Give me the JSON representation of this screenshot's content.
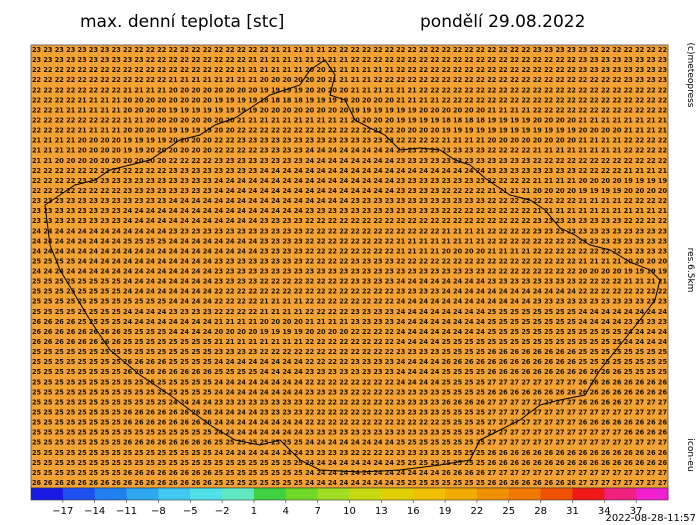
{
  "header": {
    "title": "max. denní teplota [stc]",
    "date": "pondělí 29.08.2022"
  },
  "side": {
    "copyright": "(c)meteopress",
    "resolution": "res.6.5km",
    "model": "icon-eu"
  },
  "footer": {
    "timestamp": "2022-08-28-11:57"
  },
  "map": {
    "background": "#f4a233",
    "rows": [
      "23 23 23 23 23 23 23 23 22 22 22 22 22 22 22 22 22 22 22 22 22 21 21 21 21 21 22 22 22 22 22 22 22 22 22 22 22 22 22 22 22 22 22 22 23 23 23 23 23 22 22 22 22 22 22 22",
      "23 23 23 23 23 23 23 23 23 23 22 22 22 22 22 22 22 22 22 21 21 21 21 21 21 21 21 21 22 22 22 22 22 22 22 22 22 22 22 22 22 22 22 22 22 22 22 22 23 23 23 23 23 23 23 23",
      "22 22 22 22 22 22 22 22 22 22 22 22 22 22 22 22 22 22 21 21 21 21 21 21 20 20 21 21 21 21 21 21 22 22 22 22 22 22 22 22 22 22 22 22 22 22 22 22 23 23 23 23 23 23 23 23",
      "22 22 22 22 22 22 22 22 22 22 22 22 21 21 21 21 21 21 21 21 20 20 20 20 20 20 21 21 21 21 22 22 22 22 22 22 22 22 22 22 22 22 22 22 22 22 22 22 22 22 22 22 23 23 23 23",
      "22 22 22 22 22 22 22 22 21 21 21 21 20 20 20 20 20 20 20 20 19 19 19 19 20 20 20 20 21 21 21 21 21 21 22 22 22 22 22 22 22 22 22 22 22 22 22 22 22 22 22 22 22 22 22 22",
      "22 22 22 22 21 21 21 21 20 20 20 20 20 20 20 20 19 19 19 19 18 18 18 18 19 19 19 19 20 20 20 20 21 21 21 21 22 22 22 22 22 22 22 22 22 22 22 22 22 22 22 22 22 22 22 22",
      "22 22 21 21 21 21 21 21 20 20 20 20 19 19 19 19 19 19 19 19 20 20 20 20 20 20 20 20 19 19 19 19 19 19 20 20 20 20 20 20 21 21 21 21 22 22 22 22 22 22 22 22 22 22 22 22",
      "22 22 22 22 22 22 22 22 21 21 20 20 20 20 20 20 20 20 21 21 21 21 21 21 21 21 21 21 20 20 20 20 19 19 19 19 18 18 18 18 19 19 19 19 20 20 20 20 21 21 21 21 21 21 21 21",
      "22 22 22 22 21 21 21 21 20 20 20 20 19 19 19 19 20 20 22 22 22 22 22 22 22 22 22 22 22 22 22 22 20 20 20 20 19 19 19 19 19 19 19 19 19 19 19 19 20 20 20 20 21 21 21 21",
      "21 21 21 21 20 20 20 20 19 19 19 19 20 20 20 20 22 22 23 23 23 23 23 23 23 23 23 23 23 23 23 23 22 22 22 22 21 21 21 21 20 20 20 20 20 20 20 20 21 21 21 21 22 22 22 22",
      "21 21 21 21 20 20 20 20 19 19 20 20 20 20 20 20 22 22 22 22 23 23 23 23 24 24 24 24 24 24 24 24 23 23 23 23 23 23 23 23 22 22 22 22 21 21 21 21 21 21 21 21 22 22 22 22",
      "21 21 20 20 20 20 20 20 20 20 20 20 22 22 22 22 23 23 23 23 23 23 23 23 24 24 24 24 24 24 24 24 23 23 23 23 23 23 23 23 23 23 23 23 22 22 22 22 22 22 22 22 22 22 22 22",
      "22 22 22 22 22 22 22 22 22 22 22 22 23 23 23 23 23 23 23 23 24 24 24 24 24 24 24 24 24 24 24 24 24 24 24 24 24 24 24 24 23 23 23 23 23 23 23 23 22 22 22 22 21 21 21 21",
      "22 22 22 22 23 23 23 23 23 23 23 23 23 23 23 23 24 24 24 24 24 24 24 24 24 24 24 24 24 24 24 24 23 23 23 23 23 23 23 23 22 22 22 22 21 21 21 21 20 20 20 20 19 19 19 19",
      "22 22 22 22 22 22 22 22 23 23 23 23 23 23 23 23 24 24 24 24 24 24 24 24 24 24 24 24 24 24 24 24 23 23 23 23 22 22 22 22 21 21 21 21 20 20 20 20 19 19 19 19 20 20 20 20",
      "23 23 23 23 23 23 23 23 23 23 23 23 24 24 24 24 24 24 24 24 24 24 24 24 24 24 24 24 23 23 23 23 23 23 23 23 23 23 23 23 22 22 22 22 22 22 22 22 21 21 21 21 22 22 22 22",
      "23 23 23 23 23 23 23 23 24 24 24 24 24 24 24 24 24 24 24 24 24 24 24 24 23 23 23 23 23 23 23 23 23 23 23 23 22 22 22 22 22 22 22 22 21 21 21 21 21 21 21 21 21 21 21 21",
      "23 23 23 23 23 23 23 23 24 24 24 24 24 24 24 24 24 24 24 24 23 23 23 23 22 22 22 22 22 22 22 22 22 22 22 22 22 22 22 22 22 22 22 22 23 23 23 23 23 23 23 23 22 22 22 22",
      "24 24 24 24 24 24 24 24 24 24 24 24 23 23 23 23 23 23 23 23 23 23 23 23 22 22 22 22 22 22 22 22 22 22 22 22 21 21 21 21 22 22 22 22 23 23 23 23 23 23 23 23 23 23 23 23",
      "24 24 24 24 24 24 24 24 25 25 25 25 24 24 24 24 24 24 24 24 23 23 23 23 22 22 22 22 22 22 22 22 21 21 21 21 21 21 21 21 22 22 22 22 22 22 22 22 23 23 23 23 23 23 23 23",
      "24 24 24 24 24 24 24 24 24 24 24 24 24 24 24 24 24 24 24 24 23 23 23 23 22 22 22 22 22 22 22 22 21 21 21 21 20 20 20 20 21 21 21 21 22 22 22 22 22 22 22 22 23 23 23 23",
      "25 25 25 25 24 24 24 24 24 24 24 24 24 24 24 24 23 23 23 23 23 23 23 23 22 22 22 22 23 23 23 23 22 22 22 22 22 22 22 22 22 22 22 22 22 22 22 22 21 21 21 21 20 20 20 20",
      "24 24 24 24 24 24 24 24 24 24 24 24 24 24 24 24 23 23 23 23 23 23 23 23 23 23 23 23 23 23 23 23 23 23 23 23 23 23 23 23 22 22 22 22 22 22 22 22 20 20 20 20 19 19 19 19",
      "25 25 25 25 25 25 25 25 24 24 24 24 24 24 24 24 23 23 23 23 22 22 22 22 22 22 22 22 23 23 23 23 24 24 24 24 24 24 24 24 23 23 23 23 23 23 23 23 22 22 22 22 21 21 21 21",
      "25 25 25 25 25 25 25 25 24 24 24 24 24 24 24 24 22 22 22 22 22 22 22 22 22 22 22 22 22 22 22 22 23 23 23 23 24 24 24 24 24 24 24 24 24 24 24 24 22 22 22 22 22 22 22 22",
      "25 25 25 25 25 25 25 25 25 25 25 25 24 24 24 24 22 22 22 22 21 21 21 21 22 22 22 22 22 22 22 22 24 24 24 24 24 24 24 24 24 24 24 24 23 23 23 23 23 23 23 23 23 23 23 23",
      "25 25 25 25 25 25 25 25 24 24 24 24 23 23 23 23 22 22 22 22 21 21 21 21 22 22 22 22 23 23 23 23 24 24 24 24 24 24 24 24 25 25 25 25 25 25 25 25 24 24 24 24 24 24 24 24",
      "26 26 26 26 25 25 25 25 24 24 24 24 24 24 24 24 21 21 21 21 20 20 20 20 21 21 21 21 23 23 23 23 24 24 24 24 24 24 24 24 25 25 25 25 25 25 25 25 24 24 24 24 23 23 23 23",
      "26 26 26 26 26 26 26 26 25 25 25 25 24 24 24 24 20 20 20 20 19 19 19 19 20 20 20 20 22 22 22 22 24 24 24 24 24 24 24 24 25 25 25 25 25 25 25 25 25 25 25 25 24 24 24 24",
      "26 26 26 26 26 26 26 26 25 25 25 25 25 25 25 25 21 21 21 21 21 21 21 21 22 22 22 22 22 22 22 22 24 24 24 24 25 25 25 25 25 25 25 25 25 25 25 25 25 25 25 25 24 24 24 24",
      "25 25 25 25 25 25 25 25 25 25 25 25 25 25 25 25 23 23 23 23 22 22 22 22 22 22 22 22 22 22 22 22 23 23 23 23 25 25 25 25 26 26 26 26 26 26 26 26 25 25 25 25 25 25 25 25",
      "25 25 25 25 25 25 25 25 26 26 26 26 25 25 25 25 24 24 24 24 24 24 24 24 22 22 22 22 23 23 23 23 24 24 24 24 26 26 26 26 26 26 26 26 26 26 26 26 25 25 25 25 25 25 25 25",
      "25 25 25 25 25 25 25 25 26 26 26 26 26 26 26 26 25 25 25 25 24 24 24 24 23 23 23 23 23 23 23 23 24 24 24 24 25 25 25 25 26 26 26 26 26 26 26 26 26 26 26 26 25 25 25 25",
      "25 25 25 25 25 25 25 25 25 25 25 25 25 25 25 25 24 24 24 24 24 24 24 24 22 22 22 22 22 22 22 22 24 24 24 24 25 25 25 25 27 27 27 27 27 27 27 27 26 26 26 26 26 26 26 26",
      "25 25 25 25 25 25 25 25 25 25 25 25 25 25 25 25 24 24 24 24 24 24 24 24 23 23 23 23 22 22 22 22 23 23 23 23 25 25 25 25 26 26 26 26 26 26 26 26 26 26 26 26 26 26 26 26",
      "25 25 25 25 25 25 25 25 25 25 25 25 24 24 24 24 23 23 23 23 23 23 23 23 22 22 22 22 22 22 22 22 23 23 23 23 26 26 26 26 27 27 27 27 27 27 27 27 26 26 26 26 27 27 27 27",
      "25 25 25 25 25 25 25 25 26 26 26 26 26 26 26 26 24 24 24 24 23 23 23 23 22 22 22 22 22 22 22 22 23 23 23 23 25 25 25 25 27 27 27 27 27 27 27 27 27 27 27 27 27 27 27 27",
      "25 25 25 25 25 25 25 25 26 26 26 26 26 26 26 26 24 24 24 24 24 24 24 24 22 22 22 22 22 22 22 22 22 22 22 22 25 25 25 25 27 27 27 27 27 27 27 27 26 26 26 26 26 26 26 26",
      "25 25 25 25 25 25 25 25 25 25 25 25 25 25 25 25 24 24 24 24 24 24 24 24 23 23 23 23 23 23 23 23 23 23 23 23 25 25 25 25 27 27 27 27 27 27 27 27 27 27 27 27 26 26 26 26",
      "25 25 25 25 25 25 25 25 26 26 26 26 26 26 26 26 25 25 25 25 25 25 25 25 24 24 24 24 24 24 24 24 25 25 25 25 25 25 25 25 27 27 27 27 27 27 27 27 27 27 27 27 27 27 27 27",
      "25 25 25 25 25 25 25 25 25 25 25 25 25 25 25 25 24 24 24 24 24 24 24 24 23 23 23 23 22 22 22 22 23 23 23 23 25 25 25 25 26 26 26 26 26 26 26 26 26 26 26 26 26 26 26 26",
      "25 25 25 25 25 25 25 25 25 25 25 25 25 25 25 25 25 25 25 25 25 25 25 25 24 24 24 24 24 24 24 24 25 25 25 25 25 25 25 25 26 26 26 26 26 26 26 26 26 26 26 26 26 26 26 26",
      "25 25 25 25 25 25 25 25 26 26 26 26 26 26 26 26 25 25 25 25 25 25 25 25 24 24 24 24 24 24 24 24 24 24 24 24 26 26 26 26 27 27 27 27 27 27 27 27 27 27 27 27 27 27 27 27",
      "26 26 26 26 26 26 26 26 26 26 26 26 26 26 26 26 25 25 25 25 25 25 25 25 24 24 24 24 24 24 24 24 25 25 25 25 25 25 25 25 26 26 26 26 26 26 26 26 27 27 27 27 27 27 27 27"
    ]
  },
  "colorbar": {
    "range": [
      -20,
      40
    ],
    "colors": [
      "#1a1ae6",
      "#1e50f0",
      "#2080f0",
      "#30a8f0",
      "#40c8f0",
      "#50e0e8",
      "#60e8c0",
      "#40d040",
      "#70d828",
      "#a0dc20",
      "#c8d810",
      "#e0d000",
      "#f0c000",
      "#f0aa00",
      "#f09000",
      "#f07800",
      "#f05000",
      "#f01818",
      "#f02080",
      "#f020d0"
    ],
    "ticks": [
      {
        "value": -17,
        "label": "−17"
      },
      {
        "value": -14,
        "label": "−14"
      },
      {
        "value": -11,
        "label": "−11"
      },
      {
        "value": -8,
        "label": "−8"
      },
      {
        "value": -5,
        "label": "−5"
      },
      {
        "value": -2,
        "label": "−2"
      },
      1,
      4,
      7,
      10,
      13,
      16,
      19,
      22,
      25,
      28,
      31,
      34,
      37
    ]
  }
}
